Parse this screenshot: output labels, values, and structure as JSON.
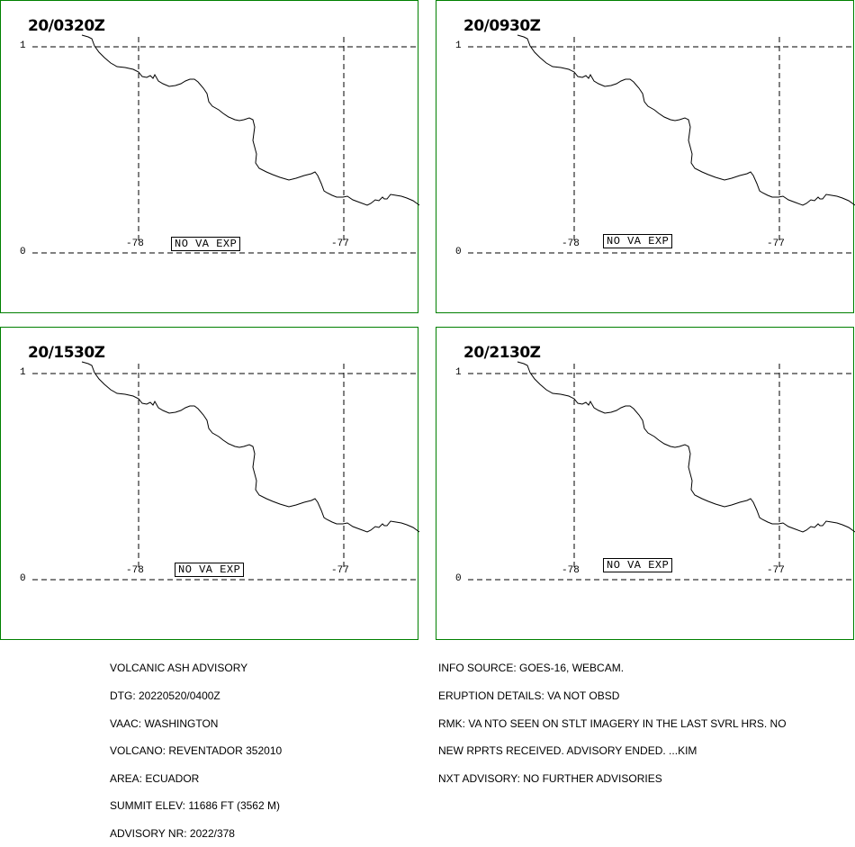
{
  "panels": [
    {
      "title": "20/0320Z",
      "status": "NO VA EXP"
    },
    {
      "title": "20/0930Z",
      "status": "NO VA EXP"
    },
    {
      "title": "20/1530Z",
      "status": "NO VA EXP"
    },
    {
      "title": "20/2130Z",
      "status": "NO VA EXP"
    }
  ],
  "axis": {
    "lat_top": "1",
    "lat_bottom": "0",
    "lon_left": "-78",
    "lon_right": "-77"
  },
  "advisory_left": [
    "VOLCANIC ASH ADVISORY",
    "DTG: 20220520/0400Z",
    "VAAC: WASHINGTON",
    "VOLCANO: REVENTADOR 352010",
    "AREA: ECUADOR",
    "SUMMIT ELEV: 11686 FT (3562 M)",
    "ADVISORY NR: 2022/378"
  ],
  "advisory_right": [
    "INFO SOURCE: GOES-16, WEBCAM.",
    "ERUPTION DETAILS: VA NOT OBSD",
    "RMK: VA NTO SEEN ON STLT IMAGERY IN THE LAST SVRL HRS. NO",
    "NEW RPRTS RECEIVED. ADVISORY ENDED. ...KIM",
    "NXT ADVISORY: NO FURTHER ADVISORIES"
  ],
  "colors": {
    "frame": "#008000",
    "lines": "#000000"
  }
}
